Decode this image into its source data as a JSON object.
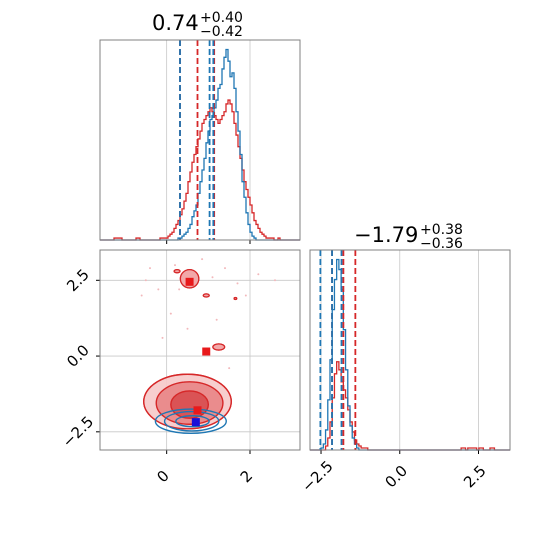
{
  "chart_data": {
    "type": "corner",
    "colors": {
      "blue": "#1f77b4",
      "red": "#d62728",
      "grid": "#c8c8c8",
      "frame": "#808080"
    },
    "params": [
      {
        "title": {
          "median": "0.74",
          "plus": "+0.40",
          "minus": "−0.42"
        }
      },
      {
        "title": {
          "median": "−1.79",
          "plus": "+0.38",
          "minus": "−0.36"
        }
      }
    ],
    "x_range_1": [
      -1.6,
      3.2
    ],
    "x_ticks_1": [
      {
        "v": 0,
        "label": "0"
      },
      {
        "v": 2,
        "label": "2"
      }
    ],
    "y_range_2": [
      -3.1,
      3.5
    ],
    "y_ticks_2": [
      {
        "v": 2.5,
        "label": "2.5"
      },
      {
        "v": 0,
        "label": "0.0"
      },
      {
        "v": -2.5,
        "label": "−2.5"
      }
    ],
    "x_range_2": [
      -2.85,
      3.5
    ],
    "x_ticks_2": [
      {
        "v": -2.5,
        "label": "−2.5"
      },
      {
        "v": 0,
        "label": "0.0"
      },
      {
        "v": 2.5,
        "label": "2.5"
      }
    ],
    "hist_1": {
      "bins": [
        -1.6,
        3.2
      ],
      "blue_values": [
        0,
        0,
        0,
        0,
        0,
        0,
        0,
        0,
        0,
        0,
        0,
        0,
        0,
        0,
        0,
        0,
        0,
        0,
        0,
        0,
        0,
        0,
        0,
        0,
        0,
        0,
        0,
        0,
        0,
        0,
        0,
        0,
        0,
        0,
        0,
        0,
        0,
        0,
        0,
        1,
        1,
        2,
        3,
        4,
        6,
        8,
        12,
        15,
        18,
        24,
        30,
        36,
        42,
        50,
        56,
        62,
        64,
        68,
        72,
        78,
        80,
        88,
        94,
        98,
        92,
        84,
        86,
        78,
        66,
        56,
        44,
        30,
        22,
        14,
        8,
        4,
        2,
        1,
        0,
        0,
        0,
        0,
        0,
        0,
        0,
        0,
        0,
        0,
        0,
        0,
        0,
        0,
        0,
        0,
        0,
        0,
        0,
        0,
        0,
        0
      ],
      "red_values": [
        0,
        0,
        0,
        0,
        0,
        0,
        0,
        1,
        1,
        1,
        1,
        0,
        0,
        0,
        0,
        0,
        0,
        0,
        1,
        1,
        0,
        0,
        0,
        0,
        0,
        0,
        0,
        0,
        0,
        0,
        1,
        1,
        1,
        1,
        2,
        3,
        4,
        6,
        8,
        10,
        13,
        16,
        20,
        24,
        30,
        35,
        40,
        44,
        48,
        52,
        56,
        60,
        62,
        64,
        66,
        68,
        66,
        64,
        62,
        60,
        62,
        64,
        66,
        70,
        72,
        70,
        66,
        60,
        54,
        48,
        42,
        36,
        30,
        26,
        22,
        18,
        14,
        10,
        8,
        6,
        4,
        3,
        2,
        1,
        1,
        1,
        1,
        0,
        0,
        1,
        0,
        0,
        0,
        0,
        0,
        0,
        0,
        0,
        0,
        0
      ],
      "blue_quantiles": [
        0.32,
        1.03,
        1.12
      ],
      "red_quantiles": [
        0.32,
        0.74,
        1.14
      ]
    },
    "hist_2": {
      "bins": [
        -2.85,
        3.5
      ],
      "blue_values": [
        0,
        0,
        0,
        0,
        0,
        1,
        3,
        10,
        25,
        45,
        70,
        85,
        95,
        90,
        80,
        60,
        40,
        22,
        12,
        6,
        3,
        1,
        0,
        0,
        0,
        0,
        0,
        0,
        0,
        0,
        0,
        0,
        0,
        0,
        0,
        0,
        0,
        0,
        0,
        0,
        0,
        0,
        0,
        0,
        0,
        0,
        0,
        0,
        0,
        0,
        0,
        0,
        0,
        0,
        0,
        0,
        0,
        0,
        0,
        0,
        0,
        0,
        0,
        0,
        0,
        0,
        0,
        0,
        0,
        0,
        0,
        0,
        0,
        0,
        0,
        0,
        0,
        0,
        0,
        0,
        0,
        0,
        0,
        0,
        0,
        0,
        0,
        0,
        0,
        0
      ],
      "red_values": [
        0,
        0,
        0,
        0,
        0,
        0,
        0,
        2,
        6,
        14,
        26,
        38,
        44,
        40,
        34,
        30,
        26,
        20,
        14,
        9,
        5,
        3,
        2,
        1,
        1,
        1,
        0,
        0,
        0,
        0,
        0,
        0,
        0,
        0,
        0,
        0,
        0,
        0,
        0,
        0,
        0,
        0,
        0,
        0,
        0,
        0,
        0,
        0,
        0,
        0,
        0,
        0,
        0,
        0,
        0,
        0,
        0,
        0,
        0,
        0,
        0,
        0,
        0,
        0,
        0,
        0,
        0,
        0,
        1,
        1,
        0,
        1,
        1,
        1,
        1,
        0,
        1,
        1,
        0,
        0,
        0,
        1,
        1,
        0,
        0,
        0,
        0,
        0,
        0,
        0
      ],
      "blue_quantiles": [
        -2.52,
        -2.15,
        -1.85
      ],
      "red_quantiles": [
        -2.15,
        -1.79,
        -1.41
      ]
    },
    "scatter_2d": {
      "red_contours": [
        {
          "cx": 0.55,
          "cy": -1.6,
          "rx": 0.45,
          "ry": 0.45
        },
        {
          "cx": 0.55,
          "cy": -1.55,
          "rx": 0.8,
          "ry": 0.7
        },
        {
          "cx": 0.5,
          "cy": -1.5,
          "rx": 1.05,
          "ry": 0.9
        },
        {
          "cx": 0.55,
          "cy": 2.55,
          "rx": 0.22,
          "ry": 0.3
        },
        {
          "cx": 0.25,
          "cy": 2.8,
          "rx": 0.07,
          "ry": 0.05
        },
        {
          "cx": 0.95,
          "cy": 2.0,
          "rx": 0.07,
          "ry": 0.05
        },
        {
          "cx": 1.25,
          "cy": 0.3,
          "rx": 0.14,
          "ry": 0.1
        },
        {
          "cx": 1.65,
          "cy": 1.9,
          "rx": 0.03,
          "ry": 0.03
        }
      ],
      "blue_contours": [
        {
          "cx": 0.62,
          "cy": -2.15,
          "rx": 0.4,
          "ry": 0.18
        },
        {
          "cx": 0.6,
          "cy": -2.15,
          "rx": 0.65,
          "ry": 0.32
        },
        {
          "cx": 0.58,
          "cy": -2.15,
          "rx": 0.85,
          "ry": 0.4
        }
      ],
      "red_points": [
        [
          0.55,
          2.45
        ],
        [
          0.95,
          0.15
        ],
        [
          0.74,
          -1.79
        ]
      ],
      "blue_points": [
        [
          0.7,
          -2.18
        ]
      ],
      "faint_points": [
        [
          -0.4,
          2.9
        ],
        [
          0.2,
          3.0
        ],
        [
          1.1,
          2.6
        ],
        [
          1.7,
          2.4
        ],
        [
          -0.5,
          2.5
        ],
        [
          0.3,
          2.2
        ],
        [
          1.4,
          2.9
        ],
        [
          2.2,
          2.7
        ],
        [
          -0.2,
          2.2
        ],
        [
          0.85,
          3.2
        ],
        [
          1.9,
          2.0
        ],
        [
          0.1,
          1.4
        ],
        [
          1.2,
          1.2
        ],
        [
          -0.6,
          2.0
        ],
        [
          2.6,
          2.5
        ],
        [
          0.5,
          0.9
        ],
        [
          1.5,
          -0.4
        ],
        [
          -0.1,
          0.6
        ]
      ]
    }
  }
}
